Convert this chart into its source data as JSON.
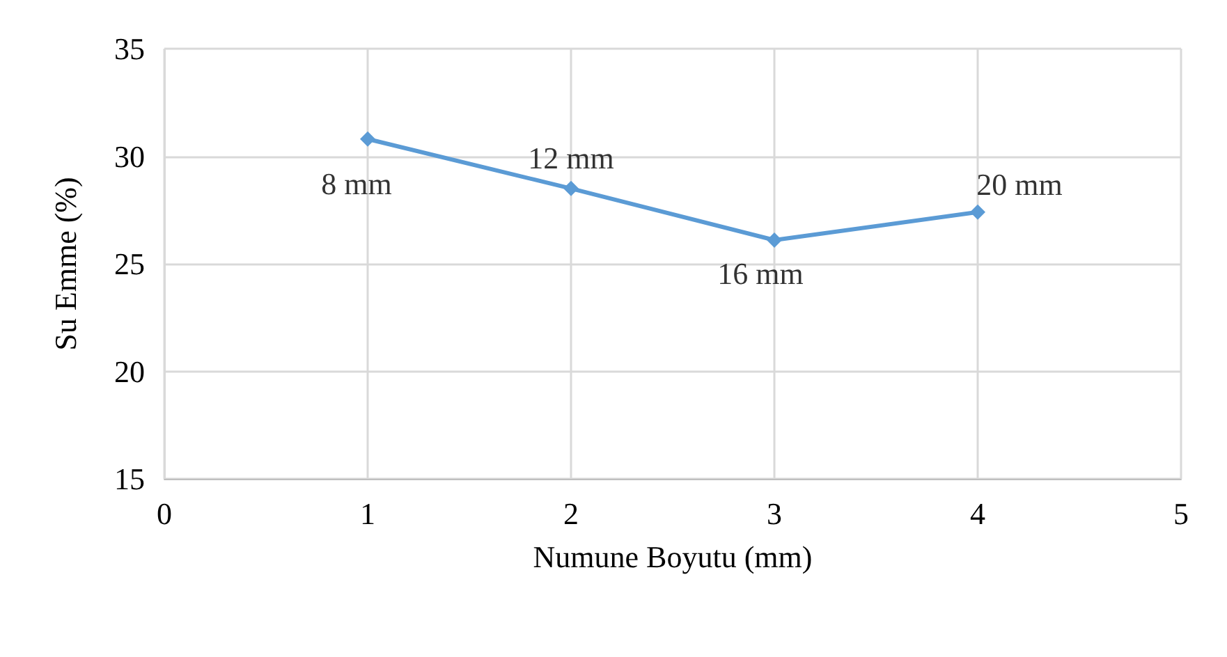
{
  "chart_data": {
    "type": "line",
    "xlabel": "Numune Boyutu (mm)",
    "ylabel": "Su Emme (%)",
    "x": [
      1,
      2,
      3,
      4
    ],
    "series": [
      {
        "color": "#5b9bd5",
        "values": [
          30.8,
          28.5,
          26.1,
          27.4
        ]
      }
    ],
    "annotations": [
      {
        "text": "8 mm",
        "x": 1,
        "y": 30.8
      },
      {
        "text": "12 mm",
        "x": 2,
        "y": 28.5
      },
      {
        "text": "16 mm",
        "x": 3,
        "y": 26.1
      },
      {
        "text": "20 mm",
        "x": 4,
        "y": 27.4
      }
    ],
    "xlim": [
      0,
      5
    ],
    "xticks": [
      0,
      1,
      2,
      3,
      4,
      5
    ],
    "ylim": [
      15,
      35
    ],
    "yticks": [
      15,
      20,
      25,
      30,
      35
    ],
    "grid": true,
    "marker": "diamond",
    "line_style": "solid"
  }
}
